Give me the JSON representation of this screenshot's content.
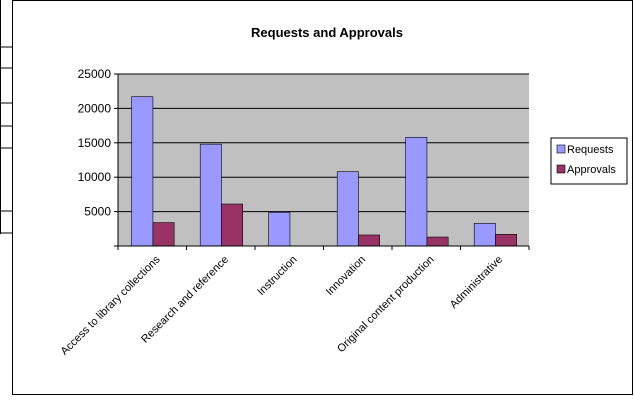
{
  "chart_data": {
    "type": "bar",
    "title": "Requests and Approvals",
    "xlabel": "",
    "ylabel": "",
    "ylim": [
      0,
      25000
    ],
    "yticks": [
      5000,
      10000,
      15000,
      20000,
      25000
    ],
    "categories": [
      "Access to library collections",
      "Research and reference",
      "Instruction",
      "Innovation",
      "Original content production",
      "Administrative"
    ],
    "series": [
      {
        "name": "Requests",
        "color": "#9999ff",
        "values": [
          21700,
          14800,
          4900,
          10800,
          15800,
          3300
        ]
      },
      {
        "name": "Approvals",
        "color": "#993366",
        "values": [
          3400,
          6100,
          0,
          1600,
          1300,
          1700
        ]
      }
    ],
    "grid": true,
    "legend_position": "right",
    "plot_background": "#c0c0c0"
  }
}
